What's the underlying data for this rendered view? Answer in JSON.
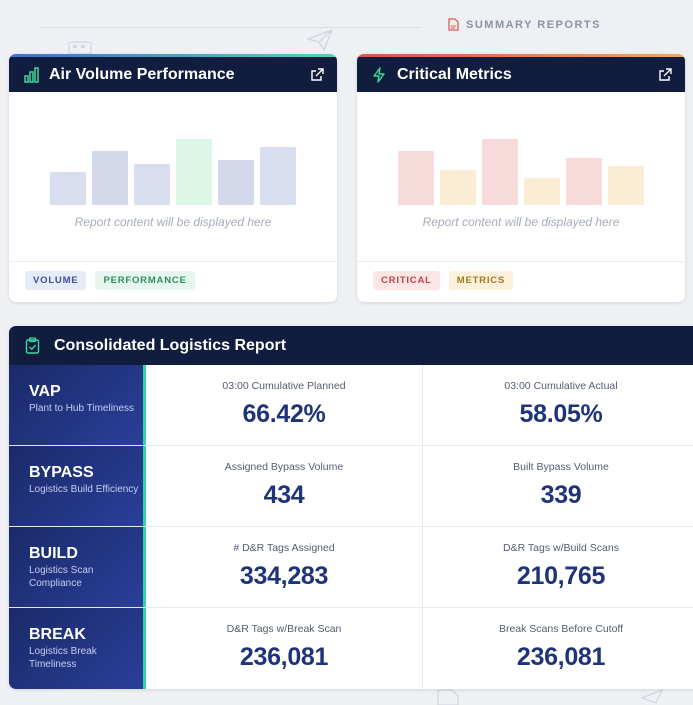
{
  "summary": {
    "title": "SUMMARY REPORTS"
  },
  "cards": [
    {
      "title": "Air Volume Performance",
      "icon": "bar-chart-icon",
      "accent": "#4ea3e8",
      "placeholder": "Report content will be displayed here",
      "chart_data": {
        "type": "bar",
        "values": [
          40,
          65,
          50,
          80,
          55,
          70
        ],
        "colors": [
          "#d8def0",
          "#d3d9ea",
          "#d8def0",
          "#dcf7e8",
          "#d3d9ea",
          "#d8def0"
        ]
      },
      "tags": [
        {
          "label": "VOLUME",
          "bg": "#e6ebf7",
          "fg": "#3b4f9a"
        },
        {
          "label": "PERFORMANCE",
          "bg": "#e6f6ee",
          "fg": "#2f8f5b"
        }
      ]
    },
    {
      "title": "Critical Metrics",
      "icon": "lightning-icon",
      "accent": "#e05b4f",
      "placeholder": "Report content will be displayed here",
      "chart_data": {
        "type": "bar",
        "values": [
          70,
          45,
          85,
          35,
          60,
          50
        ],
        "colors": [
          "#f7dada",
          "#fbecd4",
          "#f7dada",
          "#fbecd4",
          "#f7dada",
          "#fbecd4"
        ]
      },
      "tags": [
        {
          "label": "CRITICAL",
          "bg": "#fbe6e6",
          "fg": "#c24545"
        },
        {
          "label": "METRICS",
          "bg": "#fbf1dc",
          "fg": "#a37820"
        }
      ]
    }
  ],
  "report": {
    "title": "Consolidated Logistics Report",
    "rows": [
      {
        "code": "VAP",
        "sub": "Plant to Hub Timeliness",
        "metrics": [
          {
            "label": "03:00 Cumulative Planned",
            "value": "66.42%"
          },
          {
            "label": "03:00 Cumulative Actual",
            "value": "58.05%"
          }
        ]
      },
      {
        "code": "BYPASS",
        "sub": "Logistics Build Efficiency",
        "metrics": [
          {
            "label": "Assigned Bypass Volume",
            "value": "434"
          },
          {
            "label": "Built Bypass Volume",
            "value": "339"
          }
        ]
      },
      {
        "code": "BUILD",
        "sub": "Logistics Scan Compliance",
        "metrics": [
          {
            "label": "# D&R Tags Assigned",
            "value": "334,283"
          },
          {
            "label": "D&R Tags w/Build Scans",
            "value": "210,765"
          }
        ]
      },
      {
        "code": "BREAK",
        "sub": "Logistics Break Timeliness",
        "metrics": [
          {
            "label": "D&R Tags w/Break Scan",
            "value": "236,081"
          },
          {
            "label": "Break Scans Before Cutoff",
            "value": "236,081"
          }
        ]
      }
    ]
  },
  "colors": {
    "header_bg": "#111d3e",
    "row_label_accent": "#2fd6a6",
    "metric_value": "#1f3478"
  }
}
